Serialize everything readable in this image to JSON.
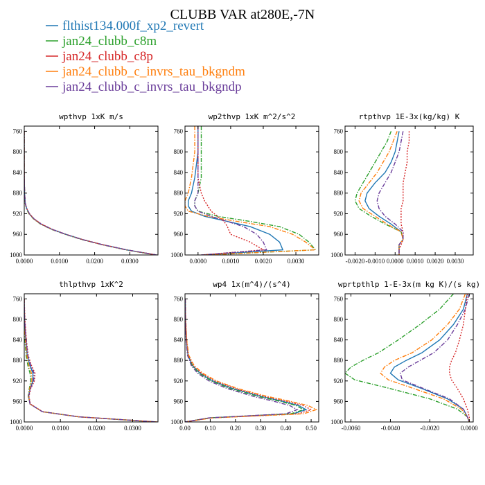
{
  "figure": {
    "title": "CLUBB VAR at280E,-7N"
  },
  "legend": [
    {
      "name": "flthist134.000f_xp2_revert",
      "color": "#1f77b4",
      "dash": "solid"
    },
    {
      "name": "jan24_clubb_c8m",
      "color": "#2ca02c",
      "dash": "dashdot"
    },
    {
      "name": "jan24_clubb_c8p",
      "color": "#d62728",
      "dash": "dot"
    },
    {
      "name": "jan24_clubb_c_invrs_tau_bkgndm",
      "color": "#ff7f0e",
      "dash": "dashdot"
    },
    {
      "name": "jan24_clubb_c_invrs_tau_bkgndp",
      "color": "#6a3d9a",
      "dash": "dashdot"
    }
  ],
  "chart_data": [
    {
      "type": "line",
      "title": "wpthvp  1xK m/s",
      "xlim": [
        0,
        0.038
      ],
      "ylim": [
        1000,
        750
      ],
      "xticks": [
        0,
        0.01,
        0.02,
        0.03
      ],
      "xticklabels": [
        "0.0000",
        "0.0100",
        "0.0200",
        "0.0300"
      ],
      "yticks": [
        760,
        800,
        840,
        880,
        920,
        960,
        1000
      ],
      "y": [
        760,
        800,
        840,
        880,
        900,
        910,
        920,
        930,
        940,
        950,
        960,
        970,
        980,
        990,
        1000
      ],
      "series": [
        {
          "values": [
            0,
            0,
            0,
            0.0001,
            0.0003,
            0.0007,
            0.0014,
            0.0027,
            0.0048,
            0.0078,
            0.0118,
            0.0165,
            0.0222,
            0.029,
            0.0375
          ]
        },
        {
          "values": [
            0,
            0,
            0,
            0.0001,
            0.0003,
            0.0006,
            0.0013,
            0.0026,
            0.0046,
            0.0076,
            0.0116,
            0.0163,
            0.022,
            0.0288,
            0.0373
          ]
        },
        {
          "values": [
            0,
            0,
            0,
            0.0001,
            0.0003,
            0.0007,
            0.0015,
            0.0028,
            0.0049,
            0.0079,
            0.0119,
            0.0166,
            0.0223,
            0.0292,
            0.0377
          ]
        },
        {
          "values": [
            0,
            0,
            0,
            0.0001,
            0.0003,
            0.0007,
            0.0014,
            0.0027,
            0.0047,
            0.0077,
            0.0117,
            0.0164,
            0.0221,
            0.0289,
            0.0374
          ]
        },
        {
          "values": [
            0,
            0,
            0,
            0.0001,
            0.0003,
            0.0007,
            0.0015,
            0.0028,
            0.0048,
            0.0078,
            0.0118,
            0.0165,
            0.0222,
            0.0291,
            0.0376
          ]
        }
      ]
    },
    {
      "type": "line",
      "title": "wp2thvp  1xK m^2/s^2",
      "xlim": [
        -0.0004,
        0.0037
      ],
      "ylim": [
        1000,
        750
      ],
      "xticks": [
        0,
        0.001,
        0.002,
        0.003
      ],
      "xticklabels": [
        "0.0000",
        "0.0010",
        "0.0020",
        "0.0030"
      ],
      "yticks": [
        760,
        800,
        840,
        880,
        920,
        960,
        1000
      ],
      "y": [
        750,
        800,
        850,
        880,
        895,
        905,
        915,
        925,
        935,
        945,
        960,
        975,
        990,
        1000
      ],
      "series": [
        {
          "values": [
            0,
            0,
            -0.0001,
            -0.0002,
            -0.0003,
            -0.0003,
            -0.0002,
            0.0002,
            0.0009,
            0.0016,
            0.0022,
            0.0025,
            0.0026,
            0.0002
          ]
        },
        {
          "values": [
            0.0001,
            0.0001,
            0.0001,
            0.0,
            -0.0001,
            -0.0001,
            0.0,
            0.0006,
            0.0016,
            0.0025,
            0.0031,
            0.0034,
            0.0036,
            0.0003
          ]
        },
        {
          "values": [
            0,
            0,
            0,
            0.0001,
            0.0002,
            0.0003,
            0.0004,
            0.0006,
            0.0008,
            0.0009,
            0.001,
            0.0016,
            0.002,
            0.0001
          ]
        },
        {
          "values": [
            -0.0001,
            -0.0001,
            -0.0002,
            -0.0003,
            -0.0004,
            -0.0004,
            -0.0003,
            0.0003,
            0.0012,
            0.0022,
            0.0029,
            0.0033,
            0.0036,
            0.0002
          ]
        },
        {
          "values": [
            0,
            0,
            0,
            0,
            -0.0001,
            -0.0001,
            0.0,
            0.0004,
            0.0009,
            0.0014,
            0.0018,
            0.002,
            0.0021,
            0.0001
          ]
        }
      ]
    },
    {
      "type": "line",
      "title": "rtpthvp  1E-3x(kg/kg) K",
      "xlim": [
        -0.0025,
        0.0039
      ],
      "ylim": [
        1000,
        750
      ],
      "xticks": [
        -0.002,
        -0.001,
        0,
        0.001,
        0.002,
        0.003
      ],
      "xticklabels": [
        "-0.0020",
        "-0.0010",
        "0.0000",
        "0.0010",
        "0.0020",
        "0.0030"
      ],
      "yticks": [
        760,
        800,
        840,
        880,
        920,
        960,
        1000
      ],
      "y": [
        760,
        780,
        800,
        820,
        840,
        860,
        880,
        895,
        910,
        925,
        940,
        955,
        970,
        980,
        990,
        1000
      ],
      "series": [
        {
          "values": [
            0.0002,
            0.0001,
            0,
            -0.0002,
            -0.0005,
            -0.001,
            -0.0014,
            -0.0015,
            -0.0013,
            -0.0008,
            -0.0002,
            0.0003,
            0.0004,
            0.0002,
            0.0002,
            0.0002
          ]
        },
        {
          "values": [
            -0.0002,
            -0.0004,
            -0.0007,
            -0.001,
            -0.0013,
            -0.0016,
            -0.0019,
            -0.002,
            -0.0018,
            -0.0012,
            -0.0005,
            0.0003,
            0.0004,
            0.0002,
            0.0002,
            0.0002
          ]
        },
        {
          "values": [
            0.0007,
            0.0007,
            0.0006,
            0.0006,
            0.0005,
            0.0004,
            0.0004,
            0.0004,
            0.0003,
            0.0003,
            0.0003,
            0.0004,
            0.0004,
            0.0003,
            0.0002,
            0.0002
          ]
        },
        {
          "values": [
            0.0001,
            -0.0001,
            -0.0003,
            -0.0006,
            -0.0009,
            -0.0013,
            -0.0017,
            -0.0018,
            -0.0016,
            -0.001,
            -0.0004,
            0.0003,
            0.0004,
            0.0002,
            0.0002,
            0.0002
          ]
        },
        {
          "values": [
            0.0004,
            0.0003,
            0.0002,
            0.0,
            -0.0002,
            -0.0005,
            -0.0008,
            -0.0009,
            -0.0008,
            -0.0005,
            0.0,
            0.0004,
            0.0004,
            0.0002,
            0.0002,
            0.0002
          ]
        }
      ]
    },
    {
      "type": "line",
      "title": "thlpthvp  1xK^2",
      "xlim": [
        0,
        0.037
      ],
      "ylim": [
        1000,
        750
      ],
      "xticks": [
        0,
        0.01,
        0.02,
        0.03
      ],
      "xticklabels": [
        "0.0000",
        "0.0100",
        "0.0200",
        "0.0300"
      ],
      "yticks": [
        760,
        800,
        840,
        880,
        920,
        960,
        1000
      ],
      "y": [
        760,
        800,
        840,
        870,
        890,
        905,
        920,
        935,
        950,
        965,
        980,
        990,
        1000
      ],
      "series": [
        {
          "values": [
            0,
            0.0001,
            0.0004,
            0.0008,
            0.0016,
            0.0024,
            0.0024,
            0.0016,
            0.0012,
            0.0016,
            0.005,
            0.015,
            0.0365
          ]
        },
        {
          "values": [
            0,
            0.0,
            0.0002,
            0.0005,
            0.001,
            0.0016,
            0.0018,
            0.0014,
            0.0011,
            0.0016,
            0.005,
            0.015,
            0.0365
          ]
        },
        {
          "values": [
            0,
            0.0002,
            0.0006,
            0.0011,
            0.002,
            0.003,
            0.0028,
            0.0018,
            0.0013,
            0.0017,
            0.0051,
            0.0152,
            0.0368
          ]
        },
        {
          "values": [
            0,
            0.0001,
            0.0003,
            0.0007,
            0.0013,
            0.002,
            0.0021,
            0.0015,
            0.0012,
            0.0016,
            0.005,
            0.015,
            0.0366
          ]
        },
        {
          "values": [
            0,
            0.0001,
            0.0005,
            0.001,
            0.0018,
            0.0027,
            0.0026,
            0.0017,
            0.0012,
            0.0016,
            0.005,
            0.0151,
            0.0367
          ]
        }
      ]
    },
    {
      "type": "line",
      "title": "wp4  1x(m^4)/(s^4)",
      "xlim": [
        0,
        0.53
      ],
      "ylim": [
        1000,
        750
      ],
      "xticks": [
        0,
        0.1,
        0.2,
        0.3,
        0.4,
        0.5
      ],
      "xticklabels": [
        "0.00",
        "0.10",
        "0.20",
        "0.30",
        "0.40",
        "0.50"
      ],
      "yticks": [
        760,
        800,
        840,
        880,
        920,
        960,
        1000
      ],
      "y": [
        760,
        800,
        840,
        870,
        890,
        905,
        920,
        935,
        950,
        960,
        968,
        976,
        984,
        992,
        1000
      ],
      "series": [
        {
          "values": [
            0.001,
            0.002,
            0.005,
            0.012,
            0.03,
            0.06,
            0.11,
            0.19,
            0.3,
            0.39,
            0.45,
            0.48,
            0.43,
            0.1,
            0.0
          ]
        },
        {
          "values": [
            0.001,
            0.002,
            0.005,
            0.011,
            0.028,
            0.056,
            0.104,
            0.18,
            0.288,
            0.378,
            0.44,
            0.47,
            0.42,
            0.098,
            0.0
          ]
        },
        {
          "values": [
            0.001,
            0.002,
            0.006,
            0.013,
            0.033,
            0.065,
            0.118,
            0.2,
            0.312,
            0.405,
            0.468,
            0.5,
            0.45,
            0.105,
            0.0
          ]
        },
        {
          "values": [
            0.001,
            0.003,
            0.007,
            0.015,
            0.036,
            0.07,
            0.125,
            0.21,
            0.325,
            0.42,
            0.488,
            0.52,
            0.47,
            0.11,
            0.0
          ]
        },
        {
          "values": [
            0.001,
            0.002,
            0.004,
            0.01,
            0.025,
            0.05,
            0.095,
            0.168,
            0.27,
            0.355,
            0.415,
            0.445,
            0.4,
            0.095,
            0.0
          ]
        }
      ]
    },
    {
      "type": "line",
      "title": "wprtpthlp  1-E-3x(m kg K)/(s kg)",
      "xlim": [
        -0.0063,
        0.0002
      ],
      "ylim": [
        1000,
        750
      ],
      "xticks": [
        -0.006,
        -0.004,
        -0.002,
        0
      ],
      "xticklabels": [
        "-0.0060",
        "-0.0040",
        "-0.0020",
        "0.0000"
      ],
      "yticks": [
        760,
        800,
        840,
        880,
        920,
        960,
        1000
      ],
      "y": [
        750,
        780,
        810,
        840,
        865,
        880,
        893,
        905,
        918,
        935,
        955,
        975,
        990,
        1000
      ],
      "series": [
        {
          "values": [
            -0.0001,
            -0.0003,
            -0.0008,
            -0.0015,
            -0.0024,
            -0.0032,
            -0.0038,
            -0.004,
            -0.0036,
            -0.0024,
            -0.0011,
            -0.0003,
            -0.0001,
            0.0
          ]
        },
        {
          "values": [
            -0.0008,
            -0.0015,
            -0.0025,
            -0.0036,
            -0.0046,
            -0.0054,
            -0.006,
            -0.0063,
            -0.0058,
            -0.004,
            -0.002,
            -0.0006,
            -0.0001,
            0.0
          ]
        },
        {
          "values": [
            -0.0001,
            -0.0002,
            -0.0003,
            -0.0005,
            -0.0007,
            -0.0009,
            -0.001,
            -0.001,
            -0.0009,
            -0.0006,
            -0.0003,
            -0.0001,
            0.0,
            0.0
          ]
        },
        {
          "values": [
            -0.0002,
            -0.0005,
            -0.0011,
            -0.0019,
            -0.0029,
            -0.0038,
            -0.0043,
            -0.0045,
            -0.0041,
            -0.0028,
            -0.0013,
            -0.0004,
            -0.0001,
            0.0
          ]
        },
        {
          "values": [
            0.0,
            -0.0002,
            -0.0006,
            -0.0011,
            -0.0018,
            -0.0025,
            -0.0031,
            -0.0035,
            -0.0034,
            -0.0023,
            -0.001,
            -0.0003,
            -0.0001,
            0.0
          ]
        }
      ]
    }
  ]
}
